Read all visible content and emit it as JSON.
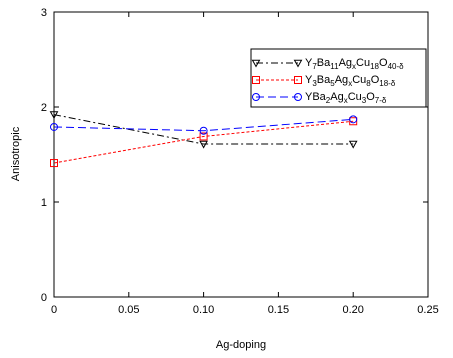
{
  "chart_data": {
    "type": "line",
    "xlabel": "Ag-doping",
    "ylabel": "Anisotropic",
    "xlim": [
      0,
      0.25
    ],
    "ylim": [
      0,
      3
    ],
    "x_ticks": [
      {
        "value": 0,
        "label": "0"
      },
      {
        "value": 0.05,
        "label": "0.05"
      },
      {
        "value": 0.1,
        "label": "0.10"
      },
      {
        "value": 0.15,
        "label": "0.15"
      },
      {
        "value": 0.2,
        "label": "0.20"
      },
      {
        "value": 0.25,
        "label": "0.25"
      }
    ],
    "y_ticks": [
      {
        "value": 0,
        "label": "0"
      },
      {
        "value": 1,
        "label": "1"
      },
      {
        "value": 2,
        "label": "2"
      },
      {
        "value": 3,
        "label": "3"
      }
    ],
    "grid": false,
    "legend_position": "top-right",
    "series": [
      {
        "name_parts": [
          {
            "t": "Y",
            "sub": "7"
          },
          {
            "t": "Ba",
            "sub": "11"
          },
          {
            "t": "Ag",
            "sub": "x"
          },
          {
            "t": "Cu",
            "sub": "18"
          },
          {
            "t": "O",
            "sub": "40-δ"
          }
        ],
        "color": "#000000",
        "dash": "7,3,2,3",
        "marker": "triangle-down",
        "x": [
          0,
          0.1,
          0.2
        ],
        "y": [
          1.92,
          1.61,
          1.61
        ]
      },
      {
        "name_parts": [
          {
            "t": "Y",
            "sub": "3"
          },
          {
            "t": "Ba",
            "sub": "5"
          },
          {
            "t": "Ag",
            "sub": "x"
          },
          {
            "t": "Cu",
            "sub": "8"
          },
          {
            "t": "O",
            "sub": "18-δ"
          }
        ],
        "color": "#ff0000",
        "dash": "3,2",
        "marker": "square",
        "x": [
          0,
          0.1,
          0.2
        ],
        "y": [
          1.41,
          1.69,
          1.85
        ]
      },
      {
        "name_parts": [
          {
            "t": "YBa",
            "sub": "2"
          },
          {
            "t": "Ag",
            "sub": "x"
          },
          {
            "t": "Cu",
            "sub": "3"
          },
          {
            "t": "O",
            "sub": "7-δ"
          }
        ],
        "color": "#0000ff",
        "dash": "8,4",
        "marker": "circle",
        "x": [
          0,
          0.1,
          0.2
        ],
        "y": [
          1.79,
          1.75,
          1.87
        ]
      }
    ]
  }
}
